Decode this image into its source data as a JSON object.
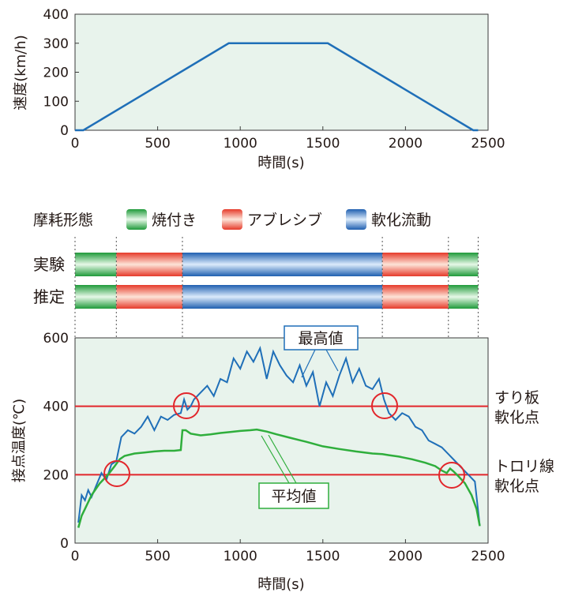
{
  "colors": {
    "plot_bg": "#e8f3ec",
    "blue_line": "#1f6fb8",
    "green_line": "#2fae3c",
    "red_line": "#e2262b",
    "green_bar": "#39b54a",
    "red_bar": "#ee5a3c",
    "blue_bar": "#2a6fc0"
  },
  "legend": {
    "title": "摩耗形態",
    "items": [
      {
        "key": "burn",
        "label": "焼付き",
        "color": "green"
      },
      {
        "key": "abrasive",
        "label": "アブレシブ",
        "color": "red"
      },
      {
        "key": "soft",
        "label": "軟化流動",
        "color": "blue"
      }
    ]
  },
  "bars": {
    "rows": [
      {
        "label": "実験",
        "segments": [
          {
            "type": "burn",
            "start": 0,
            "end": 250
          },
          {
            "type": "abrasive",
            "start": 250,
            "end": 650
          },
          {
            "type": "soft",
            "start": 650,
            "end": 1860
          },
          {
            "type": "abrasive",
            "start": 1860,
            "end": 2260
          },
          {
            "type": "burn",
            "start": 2260,
            "end": 2440
          }
        ]
      },
      {
        "label": "推定",
        "segments": [
          {
            "type": "burn",
            "start": 0,
            "end": 250
          },
          {
            "type": "abrasive",
            "start": 250,
            "end": 650
          },
          {
            "type": "soft",
            "start": 650,
            "end": 1860
          },
          {
            "type": "abrasive",
            "start": 1860,
            "end": 2260
          },
          {
            "type": "burn",
            "start": 2260,
            "end": 2440
          }
        ]
      }
    ],
    "dividers": [
      0,
      250,
      650,
      1860,
      2260,
      2440
    ]
  },
  "annotations": {
    "max_label": "最高値",
    "avg_label": "平均値",
    "line1_label": [
      "すり板",
      "軟化点"
    ],
    "line2_label": [
      "トロリ線",
      "軟化点"
    ]
  },
  "chart_data": [
    {
      "type": "line",
      "xlabel": "時間(s)",
      "ylabel": "速度(km/h)",
      "xlim": [
        0,
        2500
      ],
      "ylim": [
        0,
        400
      ],
      "xticks": [
        0,
        500,
        1000,
        1500,
        2000,
        2500
      ],
      "yticks": [
        0,
        100,
        200,
        300,
        400
      ],
      "series": [
        {
          "x": [
            0,
            50,
            930,
            1530,
            2410,
            2440
          ],
          "y": [
            0,
            0,
            300,
            300,
            0,
            0
          ]
        }
      ]
    },
    {
      "type": "line",
      "xlabel": "時間(s)",
      "ylabel": "接点温度(℃)",
      "xlim": [
        0,
        2500
      ],
      "ylim": [
        0,
        600
      ],
      "xticks": [
        0,
        500,
        1000,
        1500,
        2000,
        2500
      ],
      "yticks": [
        0,
        200,
        400,
        600
      ],
      "hlines": [
        400,
        200
      ],
      "series": [
        {
          "name": "最高値",
          "x": [
            20,
            40,
            60,
            80,
            100,
            130,
            160,
            190,
            220,
            250,
            280,
            320,
            360,
            400,
            440,
            480,
            520,
            560,
            600,
            640,
            660,
            680,
            700,
            720,
            760,
            800,
            840,
            880,
            920,
            960,
            1000,
            1040,
            1080,
            1120,
            1160,
            1200,
            1240,
            1280,
            1320,
            1360,
            1400,
            1440,
            1480,
            1520,
            1560,
            1600,
            1640,
            1680,
            1720,
            1760,
            1800,
            1840,
            1870,
            1900,
            1940,
            1980,
            2020,
            2060,
            2100,
            2140,
            2180,
            2220,
            2260,
            2300,
            2340,
            2380,
            2420,
            2450
          ],
          "y": [
            60,
            140,
            125,
            155,
            135,
            170,
            205,
            185,
            230,
            240,
            310,
            330,
            320,
            340,
            370,
            330,
            370,
            360,
            375,
            380,
            420,
            390,
            400,
            420,
            440,
            460,
            430,
            480,
            470,
            540,
            510,
            560,
            530,
            570,
            480,
            560,
            520,
            490,
            470,
            520,
            460,
            500,
            400,
            470,
            430,
            490,
            540,
            470,
            510,
            460,
            450,
            480,
            420,
            380,
            360,
            380,
            370,
            340,
            330,
            300,
            290,
            280,
            260,
            240,
            220,
            200,
            180,
            50
          ]
        },
        {
          "name": "平均値",
          "x": [
            20,
            40,
            60,
            100,
            150,
            200,
            240,
            270,
            300,
            360,
            420,
            480,
            540,
            600,
            640,
            650,
            670,
            700,
            760,
            820,
            880,
            940,
            1000,
            1060,
            1100,
            1160,
            1220,
            1300,
            1400,
            1500,
            1600,
            1700,
            1800,
            1860,
            1900,
            1960,
            2040,
            2120,
            2180,
            2220,
            2250,
            2270,
            2290,
            2320,
            2360,
            2400,
            2430,
            2450
          ],
          "y": [
            45,
            80,
            100,
            140,
            175,
            200,
            225,
            245,
            255,
            262,
            265,
            268,
            270,
            270,
            272,
            330,
            330,
            320,
            315,
            318,
            322,
            325,
            328,
            330,
            332,
            326,
            318,
            308,
            296,
            283,
            275,
            268,
            262,
            260,
            257,
            253,
            245,
            235,
            225,
            212,
            205,
            218,
            210,
            196,
            175,
            140,
            100,
            50
          ]
        }
      ]
    }
  ]
}
